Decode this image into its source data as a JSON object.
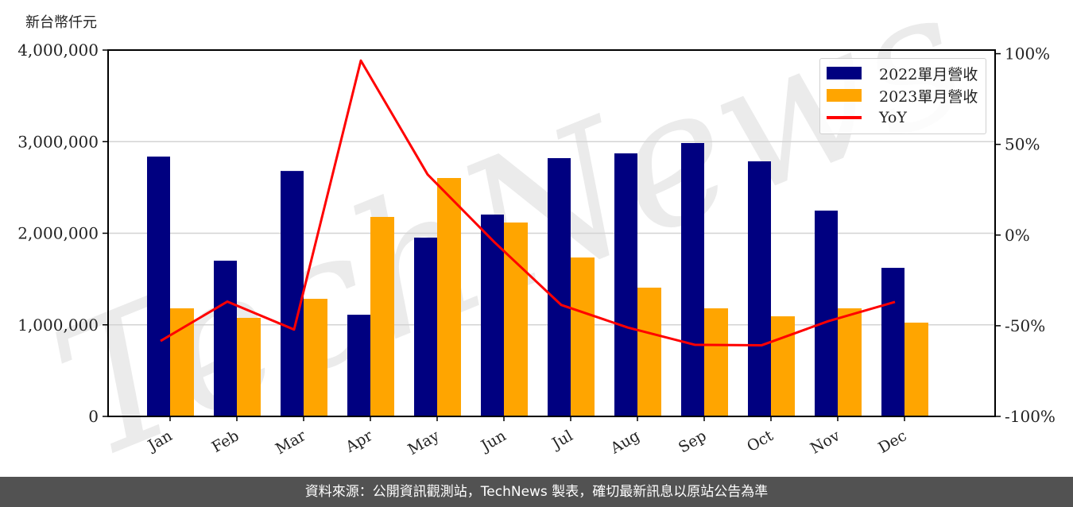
{
  "chart_data": {
    "type": "bar",
    "title": "",
    "ylabel": "新台幣仟元",
    "xlabel": "",
    "categories": [
      "Jan",
      "Feb",
      "Mar",
      "Apr",
      "May",
      "Jun",
      "Jul",
      "Aug",
      "Sep",
      "Oct",
      "Nov",
      "Dec"
    ],
    "series": [
      {
        "name": "2022單月營收",
        "type": "bar",
        "color": "#000080",
        "axis": "left",
        "values": [
          2837000,
          1700000,
          2680000,
          1110000,
          1952000,
          2204000,
          2820000,
          2872000,
          2985000,
          2785000,
          2247000,
          1622000
        ]
      },
      {
        "name": "2023單月營收",
        "type": "bar",
        "color": "#FFA500",
        "axis": "left",
        "values": [
          1180000,
          1076000,
          1284000,
          2178000,
          2603000,
          2117000,
          1735000,
          1406000,
          1180000,
          1093000,
          1180000,
          1024000
        ]
      },
      {
        "name": "YoY",
        "type": "line",
        "color": "#FF0000",
        "axis": "right",
        "unit": "%",
        "values": [
          -58.4,
          -36.7,
          -52.1,
          96.2,
          33.4,
          -3.9,
          -38.5,
          -51.0,
          -60.5,
          -60.8,
          -47.5,
          -36.9
        ]
      }
    ],
    "ylim": [
      0,
      4000000
    ],
    "y2lim": [
      -100,
      102
    ],
    "yticks": [
      "0",
      "1,000,000",
      "2,000,000",
      "3,000,000",
      "4,000,000"
    ],
    "ytick_values": [
      0,
      1000000,
      2000000,
      3000000,
      4000000
    ],
    "y2ticks": [
      "-100%",
      "-50%",
      "0%",
      "50%",
      "100%"
    ],
    "y2tick_values": [
      -100,
      -50,
      0,
      50,
      100
    ],
    "grid": true,
    "legend_position": "upper right",
    "watermark": "TechNews"
  },
  "header": {
    "unit_label": "新台幣仟元"
  },
  "legend": {
    "items": [
      {
        "label": "2022單月營收",
        "color": "#000080"
      },
      {
        "label": "2023單月營收",
        "color": "#FFA500"
      },
      {
        "label": "YoY",
        "color": "#FF0000"
      }
    ]
  },
  "footer": {
    "text": "資料來源：公開資訊觀測站，TechNews 製表，確切最新訊息以原站公告為準"
  }
}
